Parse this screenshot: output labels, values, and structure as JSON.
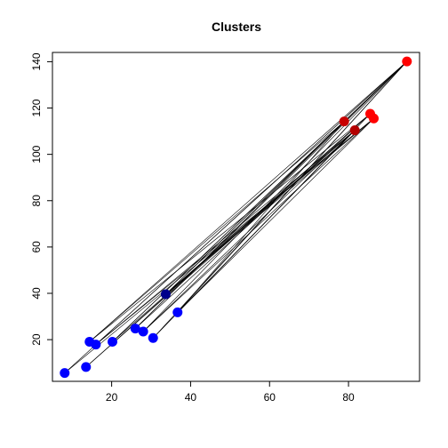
{
  "chart_data": {
    "type": "scatter",
    "title": "Clusters",
    "xlabel": "",
    "ylabel": "",
    "xlim": [
      5,
      98
    ],
    "ylim": [
      2,
      144
    ],
    "xticks": [
      20,
      40,
      60,
      80
    ],
    "yticks": [
      20,
      40,
      60,
      80,
      100,
      120,
      140
    ],
    "grid": false,
    "legend": "none",
    "clusters": [
      {
        "color": "#0000ff",
        "points": [
          {
            "x": 8.1,
            "y": 5.6
          },
          {
            "x": 13.5,
            "y": 8.2
          },
          {
            "x": 14.4,
            "y": 19.1
          },
          {
            "x": 16.0,
            "y": 17.9
          },
          {
            "x": 20.2,
            "y": 19.1
          },
          {
            "x": 26.0,
            "y": 24.8
          },
          {
            "x": 28.0,
            "y": 23.5
          },
          {
            "x": 30.5,
            "y": 20.7
          },
          {
            "x": 36.7,
            "y": 31.8
          }
        ],
        "center": {
          "x": 33.7,
          "y": 39.6,
          "color": "#00008b"
        }
      },
      {
        "color": "#ff0000",
        "points": [
          {
            "x": 94.8,
            "y": 140.1
          },
          {
            "x": 85.5,
            "y": 117.5
          },
          {
            "x": 86.4,
            "y": 115.5
          }
        ],
        "center_points": [
          {
            "x": 78.9,
            "y": 114.2,
            "color": "#c80000"
          },
          {
            "x": 81.6,
            "y": 110.4,
            "color": "#b40000"
          }
        ]
      }
    ],
    "connections": [
      {
        "x0": 8.1,
        "y0": 5.6,
        "x1": 94.8,
        "y1": 140.1
      },
      {
        "x0": 8.1,
        "y0": 5.6,
        "x1": 86.4,
        "y1": 115.5
      },
      {
        "x0": 13.5,
        "y0": 8.2,
        "x1": 85.5,
        "y1": 117.5
      },
      {
        "x0": 13.5,
        "y0": 8.2,
        "x1": 81.6,
        "y1": 110.4
      },
      {
        "x0": 14.4,
        "y0": 19.1,
        "x1": 94.8,
        "y1": 140.1
      },
      {
        "x0": 14.4,
        "y0": 19.1,
        "x1": 78.9,
        "y1": 114.2
      },
      {
        "x0": 14.4,
        "y0": 19.1,
        "x1": 85.5,
        "y1": 117.5
      },
      {
        "x0": 16.0,
        "y0": 17.9,
        "x1": 94.8,
        "y1": 140.1
      },
      {
        "x0": 16.0,
        "y0": 17.9,
        "x1": 86.4,
        "y1": 115.5
      },
      {
        "x0": 16.0,
        "y0": 17.9,
        "x1": 81.6,
        "y1": 110.4
      },
      {
        "x0": 20.2,
        "y0": 19.1,
        "x1": 94.8,
        "y1": 140.1
      },
      {
        "x0": 20.2,
        "y0": 19.1,
        "x1": 78.9,
        "y1": 114.2
      },
      {
        "x0": 20.2,
        "y0": 19.1,
        "x1": 81.6,
        "y1": 110.4
      },
      {
        "x0": 26.0,
        "y0": 24.8,
        "x1": 94.8,
        "y1": 140.1
      },
      {
        "x0": 26.0,
        "y0": 24.8,
        "x1": 85.5,
        "y1": 117.5
      },
      {
        "x0": 26.0,
        "y0": 24.8,
        "x1": 78.9,
        "y1": 114.2
      },
      {
        "x0": 28.0,
        "y0": 23.5,
        "x1": 94.8,
        "y1": 140.1
      },
      {
        "x0": 28.0,
        "y0": 23.5,
        "x1": 86.4,
        "y1": 115.5
      },
      {
        "x0": 28.0,
        "y0": 23.5,
        "x1": 81.6,
        "y1": 110.4
      },
      {
        "x0": 30.5,
        "y0": 20.7,
        "x1": 94.8,
        "y1": 140.1
      },
      {
        "x0": 30.5,
        "y0": 20.7,
        "x1": 85.5,
        "y1": 117.5
      },
      {
        "x0": 30.5,
        "y0": 20.7,
        "x1": 81.6,
        "y1": 110.4
      },
      {
        "x0": 33.7,
        "y0": 39.6,
        "x1": 94.8,
        "y1": 140.1
      },
      {
        "x0": 33.7,
        "y0": 39.6,
        "x1": 78.9,
        "y1": 114.2
      },
      {
        "x0": 33.7,
        "y0": 39.6,
        "x1": 85.5,
        "y1": 117.5
      },
      {
        "x0": 33.7,
        "y0": 39.6,
        "x1": 86.4,
        "y1": 115.5
      },
      {
        "x0": 33.7,
        "y0": 39.6,
        "x1": 81.6,
        "y1": 110.4
      },
      {
        "x0": 36.7,
        "y0": 31.8,
        "x1": 94.8,
        "y1": 140.1
      },
      {
        "x0": 36.7,
        "y0": 31.8,
        "x1": 86.4,
        "y1": 115.5
      },
      {
        "x0": 36.7,
        "y0": 31.8,
        "x1": 78.9,
        "y1": 114.2
      },
      {
        "x0": 36.7,
        "y0": 31.8,
        "x1": 81.6,
        "y1": 110.4
      }
    ]
  }
}
